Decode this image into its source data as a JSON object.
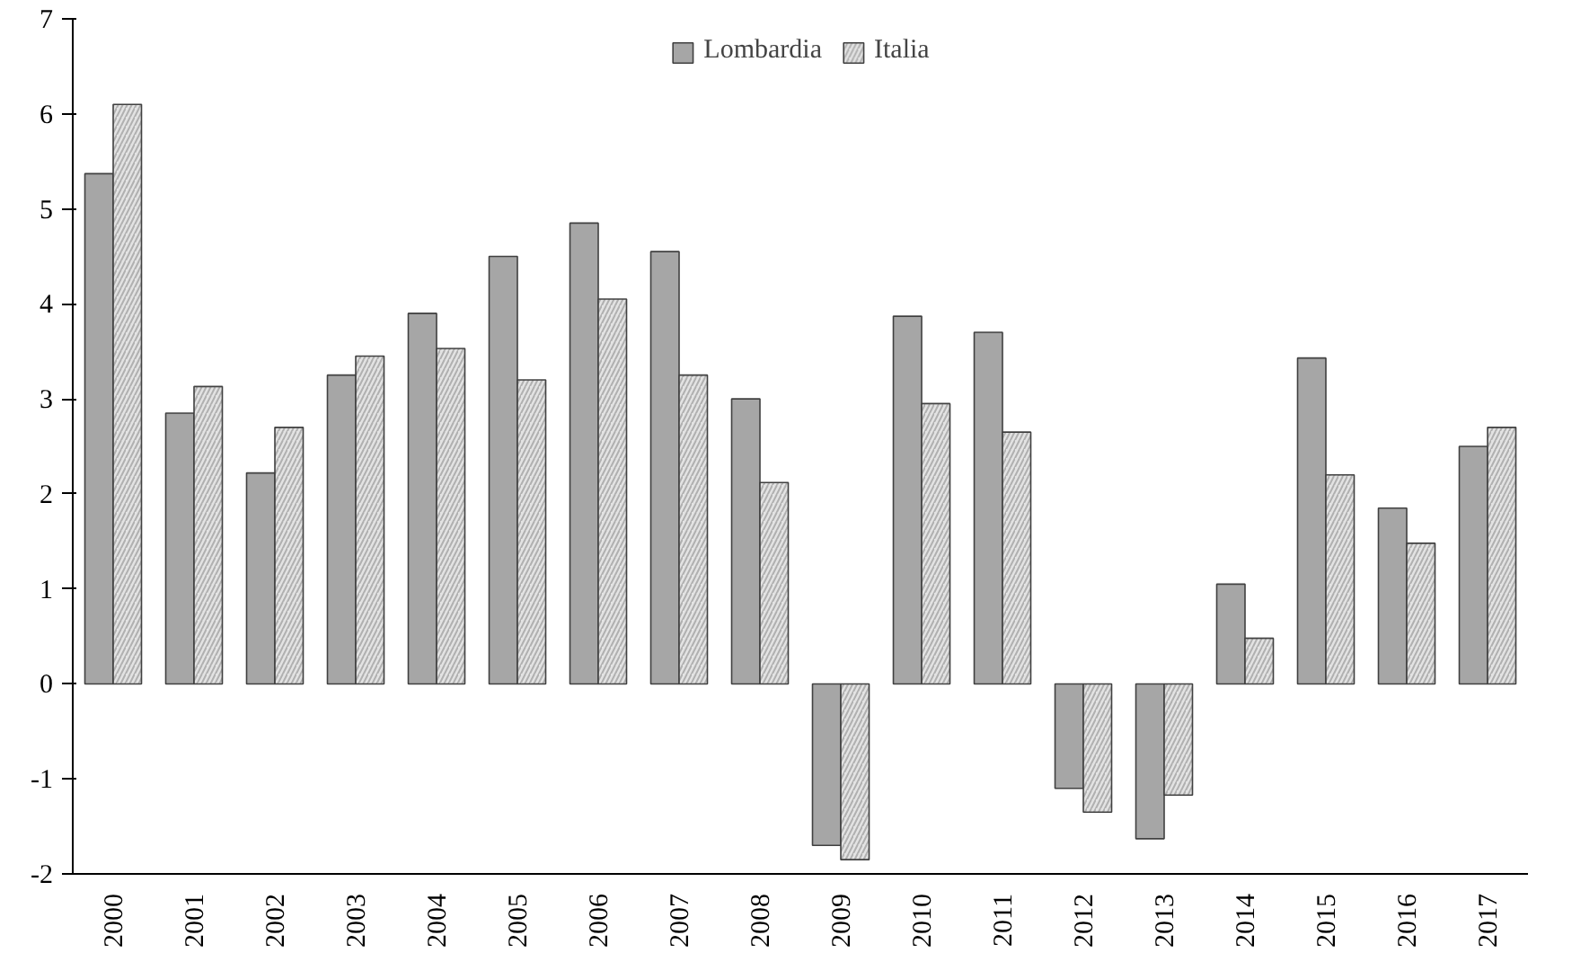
{
  "chart_data": {
    "type": "bar",
    "categories": [
      "2000",
      "2001",
      "2002",
      "2003",
      "2004",
      "2005",
      "2006",
      "2007",
      "2008",
      "2009",
      "2010",
      "2011",
      "2012",
      "2013",
      "2014",
      "2015",
      "2016",
      "2017"
    ],
    "series": [
      {
        "name": "Lombardia",
        "color": "#a6a6a6",
        "values": [
          5.37,
          2.85,
          2.22,
          3.25,
          3.9,
          4.5,
          4.85,
          4.55,
          3.0,
          -1.7,
          3.87,
          3.7,
          -1.1,
          -1.63,
          1.05,
          3.43,
          1.85,
          2.5
        ]
      },
      {
        "name": "Italia",
        "color": "#e3e3e3",
        "values": [
          6.1,
          3.13,
          2.7,
          3.45,
          3.53,
          3.2,
          4.05,
          3.25,
          2.12,
          -1.85,
          2.95,
          2.65,
          -1.35,
          -1.17,
          0.48,
          2.2,
          1.48,
          2.7
        ]
      }
    ],
    "ylim": [
      -2,
      7
    ],
    "yticks": [
      -2,
      -1,
      0,
      1,
      2,
      3,
      4,
      5,
      6,
      7
    ],
    "grid": false,
    "legend": "top"
  }
}
